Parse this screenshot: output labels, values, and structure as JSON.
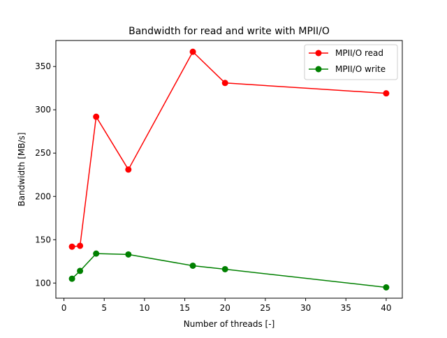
{
  "chart_data": {
    "type": "line",
    "title": "Bandwidth for read and write with MPII/O",
    "xlabel": "Number of threads [-]",
    "ylabel": "Bandwidth [MB/s]",
    "xlim": [
      -1,
      42
    ],
    "ylim": [
      82.5,
      380
    ],
    "xticks": [
      0,
      5,
      10,
      15,
      20,
      25,
      30,
      35,
      40
    ],
    "yticks": [
      100,
      150,
      200,
      250,
      300,
      350
    ],
    "grid": false,
    "legend_position": "top-right",
    "x": [
      1,
      2,
      4,
      8,
      16,
      20,
      40
    ],
    "series": [
      {
        "name": "MPII/O read",
        "color": "#ff0000",
        "values": [
          142,
          143,
          292,
          231,
          367,
          331,
          319
        ]
      },
      {
        "name": "MPII/O write",
        "color": "#008000",
        "values": [
          105,
          114,
          134,
          133,
          120,
          116,
          95
        ]
      }
    ]
  }
}
